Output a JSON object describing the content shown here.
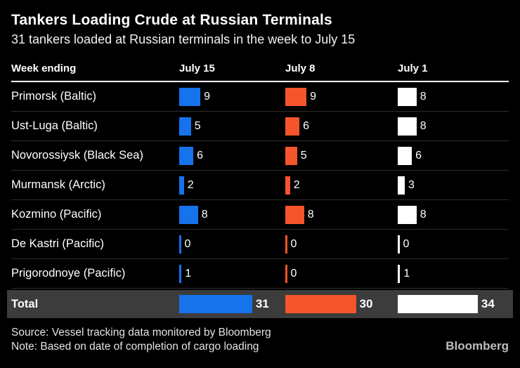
{
  "title": "Tankers Loading Crude at Russian Terminals",
  "subtitle": "31 tankers loaded at Russian terminals in the week to July 15",
  "table": {
    "label_header": "Week ending",
    "column_headers": [
      "July 15",
      "July 8",
      "July 1"
    ],
    "column_slugs": [
      "july-15",
      "july-8",
      "july-1"
    ],
    "rows": [
      {
        "label": "Primorsk (Baltic)",
        "values": [
          9,
          9,
          8
        ]
      },
      {
        "label": "Ust-Luga (Baltic)",
        "values": [
          5,
          6,
          8
        ]
      },
      {
        "label": "Novorossiysk (Black Sea)",
        "values": [
          6,
          5,
          6
        ]
      },
      {
        "label": "Murmansk (Arctic)",
        "values": [
          2,
          2,
          3
        ]
      },
      {
        "label": "Kozmino (Pacific)",
        "values": [
          8,
          8,
          8
        ]
      },
      {
        "label": "De Kastri (Pacific)",
        "values": [
          0,
          0,
          0
        ]
      },
      {
        "label": "Prigorodnoye (Pacific)",
        "values": [
          1,
          0,
          1
        ]
      }
    ],
    "total": {
      "label": "Total",
      "values": [
        31,
        30,
        34
      ]
    }
  },
  "footer": {
    "source": "Source: Vessel tracking data monitored by Bloomberg",
    "note": "Note: Based on date of completion of cargo loading",
    "brand": "Bloomberg"
  },
  "colors": {
    "background": "#000000",
    "series": [
      "#1673eb",
      "#f5552a",
      "#ffffff"
    ],
    "total_row_background": "#3c3c3c",
    "row_separator": "#2e2e2e",
    "header_rule": "#ffffff"
  },
  "chart_data": {
    "type": "bar",
    "title": "Tankers Loading Crude at Russian Terminals",
    "subtitle": "31 tankers loaded at Russian terminals in the week to July 15",
    "categories": [
      "Primorsk (Baltic)",
      "Ust-Luga (Baltic)",
      "Novorossiysk (Black Sea)",
      "Murmansk (Arctic)",
      "Kozmino (Pacific)",
      "De Kastri (Pacific)",
      "Prigorodnoye (Pacific)",
      "Total"
    ],
    "series": [
      {
        "name": "July 15",
        "color": "#1673eb",
        "values": [
          9,
          5,
          6,
          2,
          8,
          0,
          1,
          31
        ]
      },
      {
        "name": "July 8",
        "color": "#f5552a",
        "values": [
          9,
          6,
          5,
          2,
          8,
          0,
          0,
          30
        ]
      },
      {
        "name": "July 1",
        "color": "#ffffff",
        "values": [
          8,
          8,
          6,
          3,
          8,
          0,
          1,
          34
        ]
      }
    ],
    "orientation": "horizontal",
    "value_labels": true,
    "grid": false,
    "legend_position": "column-headers-top",
    "xlim": [
      0,
      34
    ],
    "xlabel": "",
    "ylabel": "Week ending"
  }
}
